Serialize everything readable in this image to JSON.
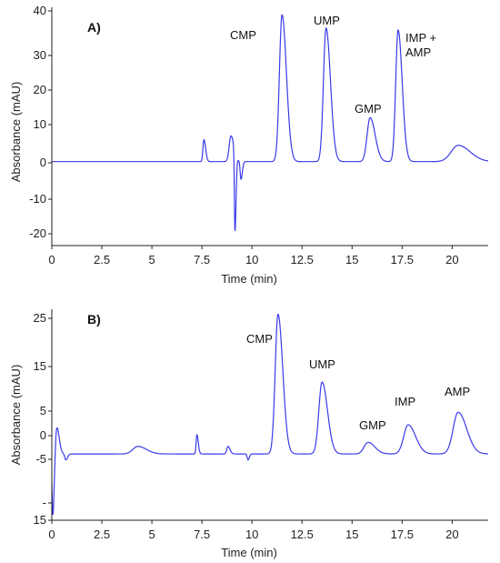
{
  "chart_data": [
    {
      "type": "line",
      "panel_label": "A)",
      "xlabel": "Time (min)",
      "ylabel": "Absorbance (mAU)",
      "xlim": [
        0,
        21.8
      ],
      "ylim": [
        -22,
        41
      ],
      "x_ticks": [
        "0",
        "2.5",
        "5",
        "7.5",
        "10",
        "12.5",
        "15",
        "17.5",
        "20"
      ],
      "y_ticks": [
        "40",
        "30",
        "20",
        "10",
        "0",
        "-10",
        "-20"
      ],
      "color": "#3a3ae8",
      "baseline": 0.2,
      "peaks": [
        {
          "label": "",
          "x": 7.6,
          "height": 6.0,
          "width": 0.05
        },
        {
          "label": "",
          "x": 8.95,
          "height": 7.0,
          "width": 0.09
        },
        {
          "label": "",
          "x": 9.15,
          "height": -21.0,
          "width": 0.03
        },
        {
          "label": "",
          "x": 9.45,
          "height": -4.5,
          "width": 0.04
        },
        {
          "label": "CMP",
          "x": 11.5,
          "height": 39.0,
          "width": 0.13
        },
        {
          "label": "UMP",
          "x": 13.7,
          "height": 35.5,
          "width": 0.13
        },
        {
          "label": "GMP",
          "x": 15.9,
          "height": 11.8,
          "width": 0.15
        },
        {
          "label": "IMP +\nAMP",
          "x": 17.3,
          "height": 35.0,
          "width": 0.12
        },
        {
          "label": "",
          "x": 20.3,
          "height": 4.5,
          "width": 0.35
        }
      ]
    },
    {
      "type": "line",
      "panel_label": "B)",
      "xlabel": "Time (min)",
      "ylabel": "Absorbance (mAU)",
      "xlim": [
        0,
        21.8
      ],
      "ylim": [
        -15,
        27
      ],
      "x_ticks": [
        "0",
        "2.5",
        "5",
        "7.5",
        "10",
        "12.5",
        "15",
        "17.5",
        "20"
      ],
      "y_ticks": [
        "25",
        "15",
        "5",
        "0",
        "-5",
        "-",
        "15"
      ],
      "color": "#3a3ae8",
      "baseline": -1.8,
      "peaks": [
        {
          "label": "",
          "x": 0.05,
          "height": -14.0,
          "width": 0.04
        },
        {
          "label": "",
          "x": 0.25,
          "height": 3.5,
          "width": 0.07
        },
        {
          "label": "",
          "x": 0.7,
          "height": -3.0,
          "width": 0.05
        },
        {
          "label": "",
          "x": 4.3,
          "height": -0.3,
          "width": 0.25
        },
        {
          "label": "",
          "x": 7.25,
          "height": 2.0,
          "width": 0.04
        },
        {
          "label": "",
          "x": 8.8,
          "height": -0.3,
          "width": 0.06
        },
        {
          "label": "",
          "x": 9.8,
          "height": -3.0,
          "width": 0.04
        },
        {
          "label": "CMP",
          "x": 11.3,
          "height": 26.0,
          "width": 0.14
        },
        {
          "label": "UMP",
          "x": 13.5,
          "height": 12.5,
          "width": 0.16
        },
        {
          "label": "GMP",
          "x": 15.8,
          "height": 0.5,
          "width": 0.2
        },
        {
          "label": "IMP",
          "x": 17.8,
          "height": 4.0,
          "width": 0.22
        },
        {
          "label": "AMP",
          "x": 20.3,
          "height": 6.5,
          "width": 0.25
        }
      ]
    }
  ]
}
